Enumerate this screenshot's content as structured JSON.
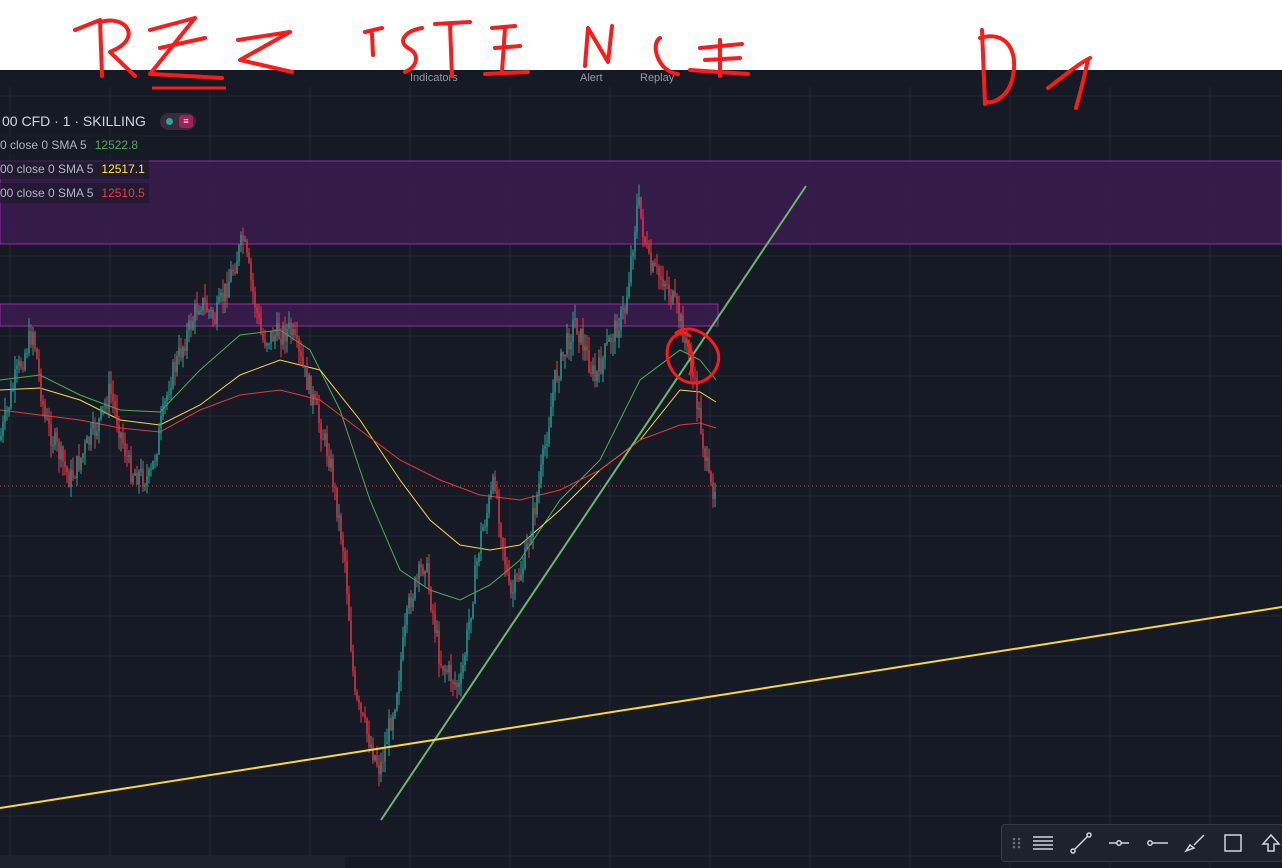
{
  "legend": {
    "symbol": "00 CFD · 1 · SKILLING",
    "sma_rows": [
      {
        "label": "0 close 0 SMA 5",
        "value": "12522.8",
        "color": "#4caf50"
      },
      {
        "label": "00 close 0 SMA 5",
        "value": "12517.1",
        "color": "#ffeb3b"
      },
      {
        "label": "00 close 0 SMA 5",
        "value": "12510.5",
        "color": "#f23645"
      }
    ]
  },
  "toolbar_fragments": [
    "Indicators",
    "Alert",
    "Replay"
  ],
  "annotations": {
    "handwritten_heading": "REZISTENCE",
    "handwritten_timeframe": "D1"
  },
  "drawing_tools": [
    {
      "icon": "grip-icon"
    },
    {
      "icon": "horizontal-lines-icon"
    },
    {
      "icon": "trend-line-icon"
    },
    {
      "icon": "horizontal-ray-icon"
    },
    {
      "icon": "horizontal-line-icon"
    },
    {
      "icon": "brush-icon"
    },
    {
      "icon": "rectangle-icon"
    },
    {
      "icon": "arrow-up-icon"
    }
  ],
  "colors": {
    "background": "#161a25",
    "up_candle": "#26a69a",
    "down_candle": "#f23645",
    "resistance_zone": "#9c27b0",
    "trendline_green": "#66bb6a",
    "trendline_yellow": "#fdd835",
    "annotation_red": "#ff1a1a"
  }
}
